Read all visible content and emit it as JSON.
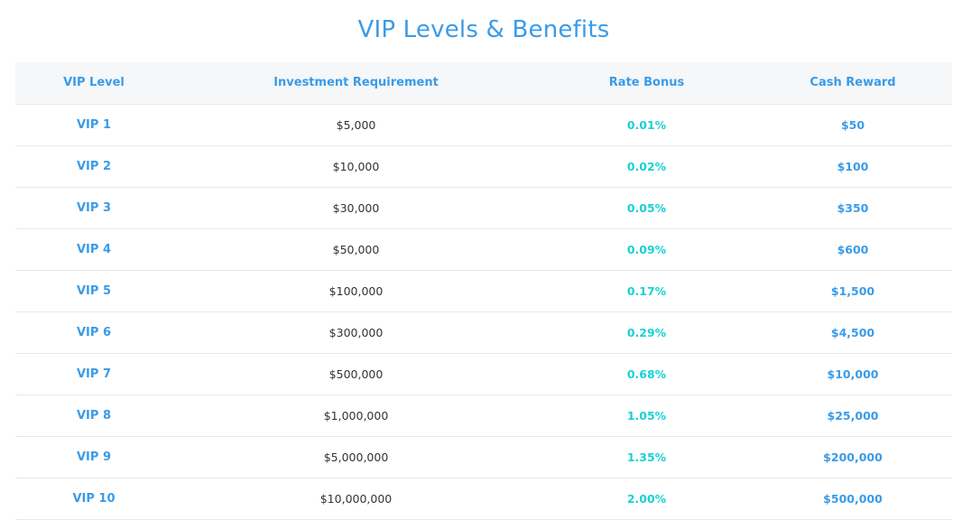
{
  "page": {
    "title": "VIP Levels & Benefits"
  },
  "colors": {
    "accent_blue": "#3a9be8",
    "accent_teal": "#1ad1d4",
    "header_bg": "#f5f7f9",
    "row_border": "#e6e9ec",
    "body_text": "#333333"
  },
  "table": {
    "headers": {
      "level": "VIP Level",
      "investment": "Investment Requirement",
      "rate": "Rate Bonus",
      "cash": "Cash Reward"
    },
    "rows": [
      {
        "level": "VIP 1",
        "investment": "$5,000",
        "rate": "0.01%",
        "cash": "$50"
      },
      {
        "level": "VIP 2",
        "investment": "$10,000",
        "rate": "0.02%",
        "cash": "$100"
      },
      {
        "level": "VIP 3",
        "investment": "$30,000",
        "rate": "0.05%",
        "cash": "$350"
      },
      {
        "level": "VIP 4",
        "investment": "$50,000",
        "rate": "0.09%",
        "cash": "$600"
      },
      {
        "level": "VIP 5",
        "investment": "$100,000",
        "rate": "0.17%",
        "cash": "$1,500"
      },
      {
        "level": "VIP 6",
        "investment": "$300,000",
        "rate": "0.29%",
        "cash": "$4,500"
      },
      {
        "level": "VIP 7",
        "investment": "$500,000",
        "rate": "0.68%",
        "cash": "$10,000"
      },
      {
        "level": "VIP 8",
        "investment": "$1,000,000",
        "rate": "1.05%",
        "cash": "$25,000"
      },
      {
        "level": "VIP 9",
        "investment": "$5,000,000",
        "rate": "1.35%",
        "cash": "$200,000"
      },
      {
        "level": "VIP 10",
        "investment": "$10,000,000",
        "rate": "2.00%",
        "cash": "$500,000"
      }
    ]
  }
}
